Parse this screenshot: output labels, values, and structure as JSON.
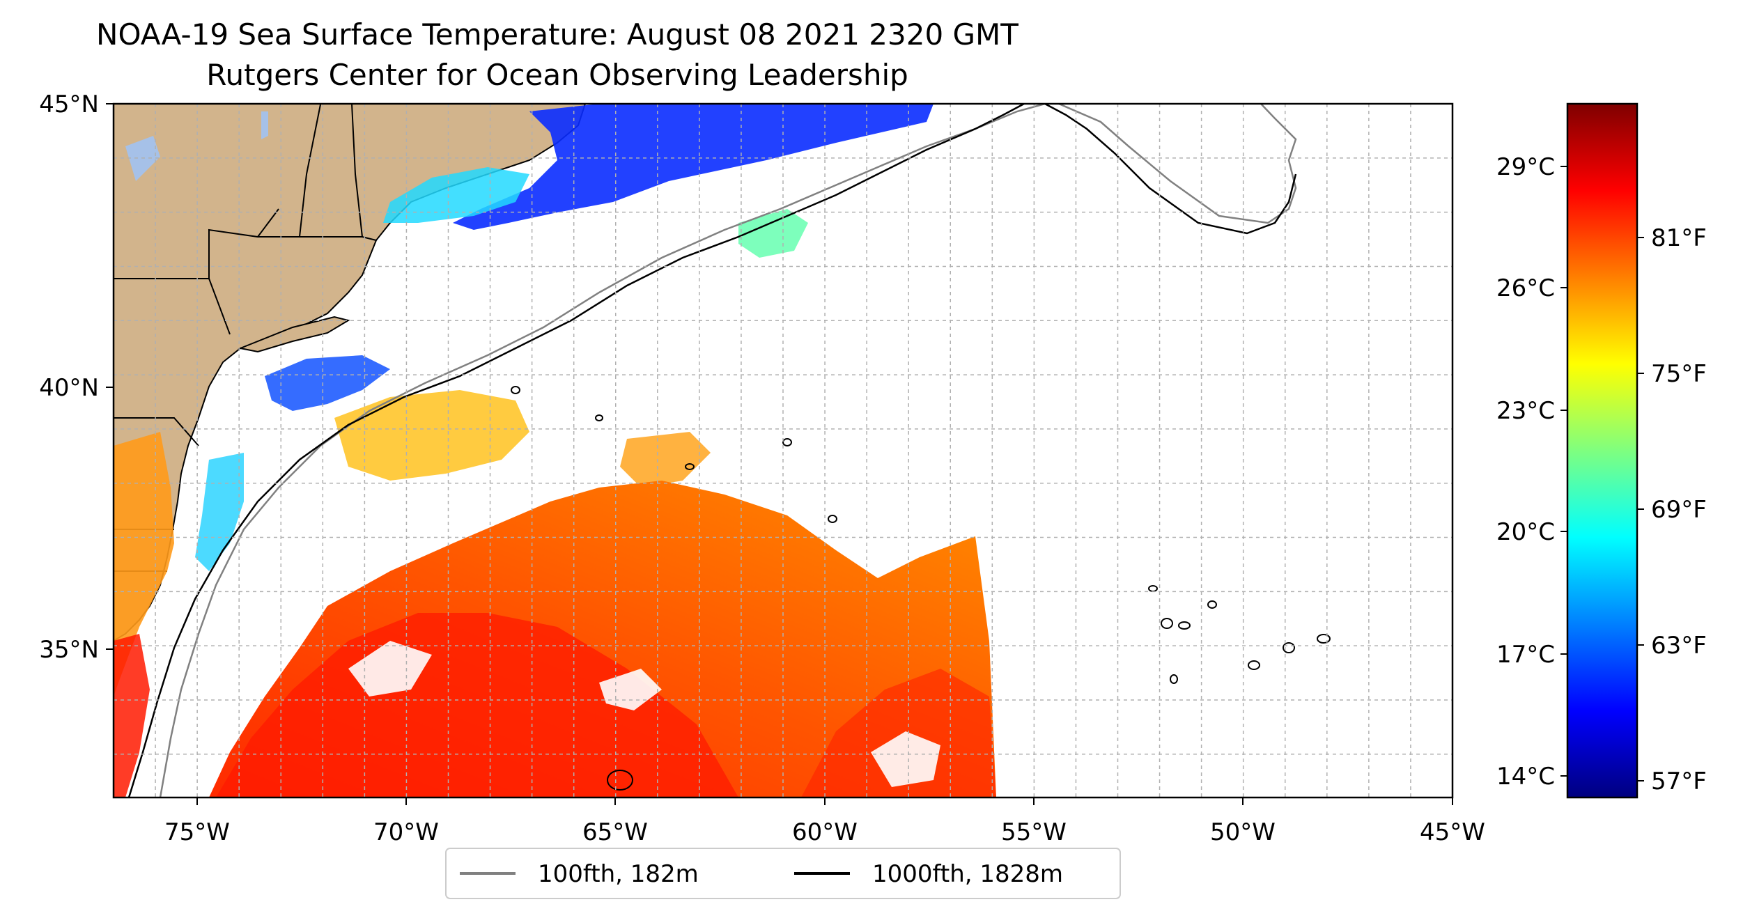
{
  "title": {
    "line1": "NOAA-19 Sea Surface Temperature: August 08 2021 2320 GMT",
    "line2": "Rutgers Center for Ocean Observing Leadership"
  },
  "map": {
    "lon_range": [
      -77,
      -45
    ],
    "lat_range": [
      32.2,
      45
    ],
    "lon_ticks": [
      "75°W",
      "70°W",
      "65°W",
      "60°W",
      "55°W",
      "50°W",
      "45°W"
    ],
    "lat_ticks": [
      "45°N",
      "40°N",
      "35°N"
    ],
    "grid": "dashed, 1° spacing",
    "land_color": "#d2b48c",
    "ocean_color": "#ffffff"
  },
  "legend": {
    "placement": "bottom-center",
    "items": [
      {
        "label": "100fth, 182m",
        "color": "#808080"
      },
      {
        "label": "1000fth, 1828m",
        "color": "#000000"
      }
    ]
  },
  "colorbar": {
    "colormap": "jet",
    "celsius_ticks": [
      "29°C",
      "26°C",
      "23°C",
      "20°C",
      "17°C",
      "14°C"
    ],
    "fahrenheit_ticks": [
      "81°F",
      "75°F",
      "69°F",
      "63°F",
      "57°F"
    ],
    "colors": [
      "#00007f",
      "#0000ff",
      "#007fff",
      "#00ffff",
      "#7fff7f",
      "#ffff00",
      "#ff7f00",
      "#ff0000",
      "#7f0000"
    ]
  }
}
